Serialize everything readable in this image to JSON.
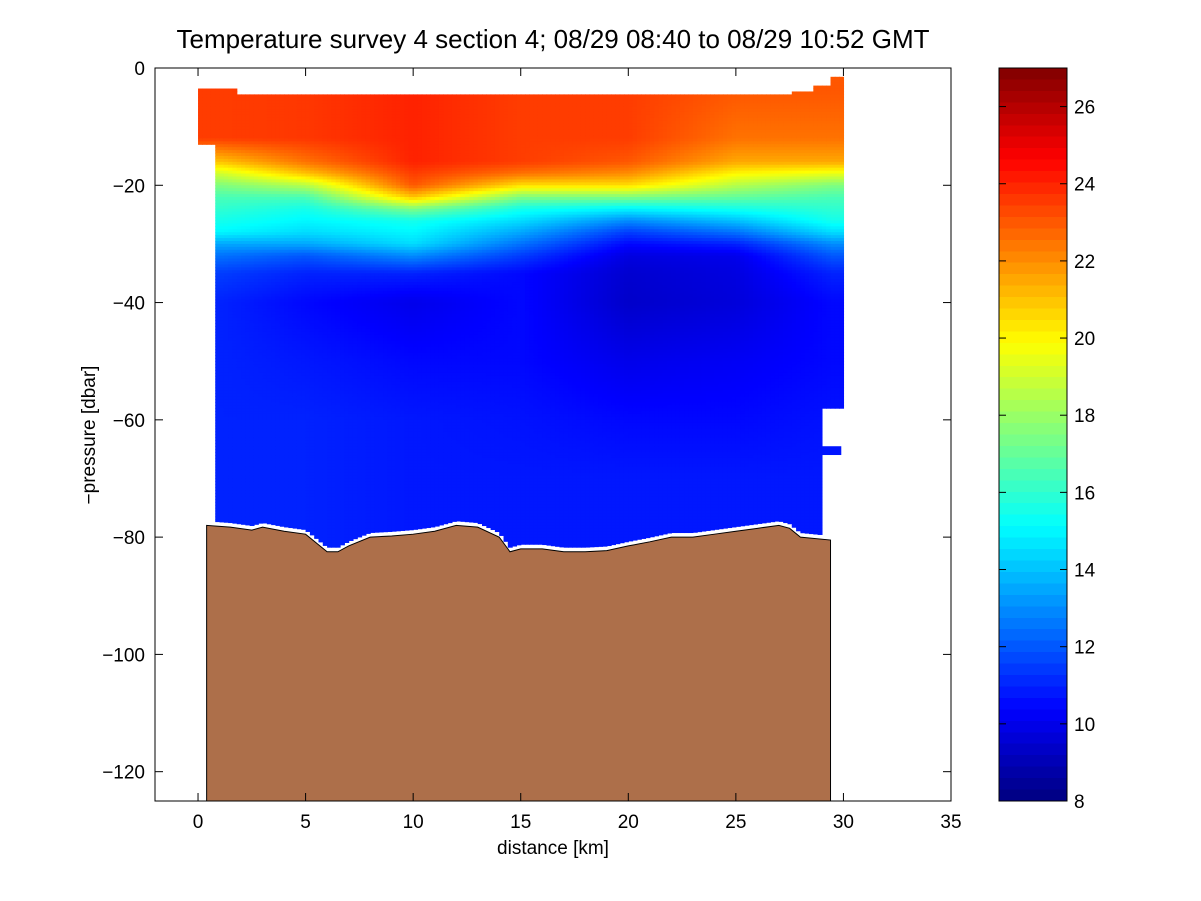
{
  "chart_data": {
    "type": "heatmap",
    "title": "Temperature survey 4 section 4; 08/29 08:40 to 08/29 10:52 GMT",
    "xlabel": "distance [km]",
    "ylabel": "−pressure [dbar]",
    "xlim": [
      -2,
      35
    ],
    "ylim": [
      -125,
      0
    ],
    "x_ticks": [
      0,
      5,
      10,
      15,
      20,
      25,
      30,
      35
    ],
    "y_ticks": [
      0,
      -20,
      -40,
      -60,
      -80,
      -100,
      -120
    ],
    "y_tick_labels": [
      "0",
      "−20",
      "−40",
      "−60",
      "−80",
      "−100",
      "−120"
    ],
    "colorbar": {
      "clim": [
        8,
        27
      ],
      "ticks": [
        8,
        10,
        12,
        14,
        16,
        18,
        20,
        22,
        24,
        26
      ],
      "colormap": "jet"
    },
    "temperature_profile": {
      "depths": [
        -4,
        -12,
        -16,
        -18,
        -20,
        -22,
        -24,
        -26,
        -28,
        -30,
        -32,
        -35,
        -40,
        -50,
        -60,
        -70,
        -80
      ],
      "columns": [
        {
          "x": 1,
          "t": [
            23.5,
            23.5,
            21.0,
            19.0,
            17.5,
            16.5,
            16.0,
            15.5,
            15.0,
            13.5,
            12.5,
            11.5,
            11.0,
            11.0,
            11.0,
            11.0,
            11.0
          ]
        },
        {
          "x": 5,
          "t": [
            23.6,
            23.6,
            22.5,
            21.0,
            18.5,
            16.5,
            15.5,
            15.0,
            14.5,
            13.5,
            12.0,
            11.0,
            10.5,
            10.8,
            11.0,
            11.0,
            11.0
          ]
        },
        {
          "x": 10,
          "t": [
            24.0,
            24.0,
            24.0,
            23.5,
            23.0,
            21.0,
            17.5,
            15.5,
            15.0,
            14.5,
            13.0,
            11.0,
            10.0,
            10.5,
            10.8,
            10.8,
            10.8
          ]
        },
        {
          "x": 15,
          "t": [
            23.5,
            23.5,
            23.5,
            22.5,
            20.5,
            17.5,
            15.5,
            14.5,
            13.5,
            12.5,
            11.5,
            10.5,
            10.5,
            10.5,
            10.7,
            10.8,
            10.8
          ]
        },
        {
          "x": 20,
          "t": [
            23.5,
            23.5,
            23.0,
            22.0,
            20.5,
            17.5,
            15.0,
            13.0,
            11.5,
            10.5,
            9.8,
            9.5,
            9.4,
            10.0,
            10.5,
            10.8,
            10.8
          ]
        },
        {
          "x": 25,
          "t": [
            23.0,
            22.5,
            21.5,
            20.0,
            18.5,
            17.0,
            15.5,
            14.0,
            12.5,
            11.0,
            10.0,
            9.8,
            9.7,
            10.2,
            10.5,
            10.8,
            10.8
          ]
        },
        {
          "x": 29.5,
          "t": [
            23.0,
            22.5,
            21.5,
            19.5,
            17.5,
            16.5,
            16.0,
            15.5,
            14.5,
            13.0,
            12.0,
            11.0,
            10.5,
            10.5,
            10.7,
            10.8,
            10.8
          ]
        }
      ]
    },
    "bathymetry": [
      {
        "x": 0.4,
        "z": -78
      },
      {
        "x": 1.5,
        "z": -78.3
      },
      {
        "x": 2.5,
        "z": -78.8
      },
      {
        "x": 3.0,
        "z": -78.3
      },
      {
        "x": 4.0,
        "z": -79
      },
      {
        "x": 5.0,
        "z": -79.5
      },
      {
        "x": 5.5,
        "z": -81
      },
      {
        "x": 6.0,
        "z": -82.5
      },
      {
        "x": 6.5,
        "z": -82.5
      },
      {
        "x": 7.0,
        "z": -81.5
      },
      {
        "x": 8.0,
        "z": -80
      },
      {
        "x": 9.0,
        "z": -79.8
      },
      {
        "x": 10.0,
        "z": -79.5
      },
      {
        "x": 11.0,
        "z": -79
      },
      {
        "x": 12.0,
        "z": -78
      },
      {
        "x": 13.0,
        "z": -78.3
      },
      {
        "x": 14.0,
        "z": -80
      },
      {
        "x": 14.5,
        "z": -82.5
      },
      {
        "x": 15.0,
        "z": -82
      },
      {
        "x": 16.0,
        "z": -82
      },
      {
        "x": 17.0,
        "z": -82.5
      },
      {
        "x": 18.0,
        "z": -82.5
      },
      {
        "x": 19.0,
        "z": -82.3
      },
      {
        "x": 20.0,
        "z": -81.5
      },
      {
        "x": 21.0,
        "z": -80.8
      },
      {
        "x": 22.0,
        "z": -80
      },
      {
        "x": 23.0,
        "z": -80
      },
      {
        "x": 24.0,
        "z": -79.5
      },
      {
        "x": 25.0,
        "z": -79
      },
      {
        "x": 26.0,
        "z": -78.5
      },
      {
        "x": 27.0,
        "z": -78
      },
      {
        "x": 27.5,
        "z": -78.5
      },
      {
        "x": 28.0,
        "z": -80
      },
      {
        "x": 29.4,
        "z": -80.5
      }
    ],
    "colors": {
      "seabed": "#AD6F4A",
      "seabed_edge": "#000000",
      "background": "#ffffff"
    }
  }
}
